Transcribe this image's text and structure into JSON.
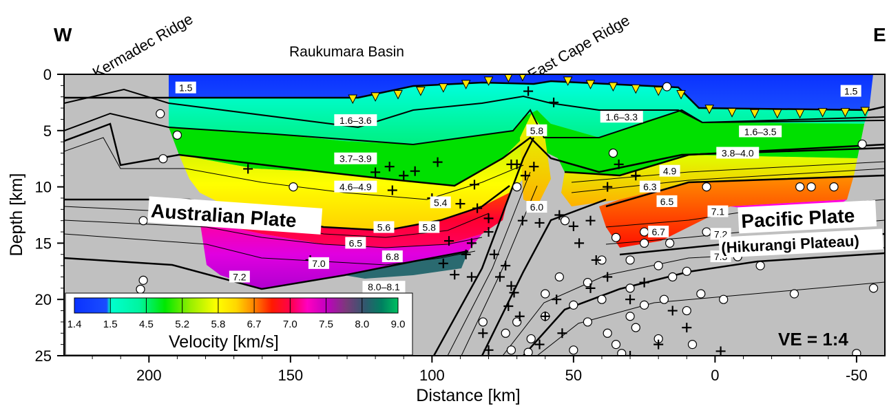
{
  "chart_data": {
    "type": "heatmap",
    "orientation": {
      "west": "W",
      "east": "E"
    },
    "regions": {
      "kermadec": "Kermadec Ridge",
      "raukumara": "Raukumara Basin",
      "east_cape": "East Cape Ridge"
    },
    "plates": {
      "australian": "Australian Plate",
      "pacific": "Pacific Plate",
      "hikurangi": "(Hikurangi Plateau)"
    },
    "xlabel": "Distance [km]",
    "ylabel": "Depth [km]",
    "xlim": [
      230,
      -60
    ],
    "ylim": [
      0,
      25
    ],
    "xticks": [
      200,
      150,
      100,
      50,
      0,
      -50
    ],
    "yticks": [
      0,
      5,
      10,
      15,
      20,
      25
    ],
    "ve_label": "VE = 1:4",
    "colorbar": {
      "label": "Velocity [km/s]",
      "ticks": [
        "1.4",
        "1.5",
        "4.5",
        "5.2",
        "5.8",
        "6.7",
        "7.0",
        "7.5",
        "8.0",
        "9.0"
      ]
    },
    "velocity_labels": [
      {
        "text": "1.5",
        "x": 187,
        "y": 1.2
      },
      {
        "text": "1.5",
        "x": -48,
        "y": 1.5
      },
      {
        "text": "1.6–3.6",
        "x": 127,
        "y": 4.1
      },
      {
        "text": "1.6–3.3",
        "x": 33,
        "y": 3.8
      },
      {
        "text": "1.6–3.5",
        "x": -16,
        "y": 5.1
      },
      {
        "text": "5.8",
        "x": 63,
        "y": 5.0
      },
      {
        "text": "3.7–3.9",
        "x": 127,
        "y": 7.5
      },
      {
        "text": "3.8–4.0",
        "x": -8,
        "y": 7.0
      },
      {
        "text": "4.9",
        "x": 16,
        "y": 8.6
      },
      {
        "text": "4.6–4.9",
        "x": 127,
        "y": 10.0
      },
      {
        "text": "6.3",
        "x": 23,
        "y": 10.0
      },
      {
        "text": "5.4",
        "x": 97,
        "y": 11.4
      },
      {
        "text": "6.0",
        "x": 63,
        "y": 11.8
      },
      {
        "text": "6.5",
        "x": 17,
        "y": 11.3
      },
      {
        "text": "7.1",
        "x": -1,
        "y": 12.2
      },
      {
        "text": "5.6",
        "x": 117,
        "y": 13.6
      },
      {
        "text": "5.8",
        "x": 101,
        "y": 13.6
      },
      {
        "text": "6.7",
        "x": 20,
        "y": 14.0
      },
      {
        "text": "7.2",
        "x": -2,
        "y": 14.2
      },
      {
        "text": "6.5",
        "x": 127,
        "y": 15.0
      },
      {
        "text": "6.8",
        "x": 114,
        "y": 16.2
      },
      {
        "text": "7.0",
        "x": 140,
        "y": 16.8
      },
      {
        "text": "7.3",
        "x": -2,
        "y": 16.2
      },
      {
        "text": "7.2",
        "x": 168,
        "y": 18.0
      },
      {
        "text": "8.0–8.1",
        "x": 117,
        "y": 18.9
      }
    ],
    "obs_stations": [
      {
        "x": 128,
        "y": 2.2
      },
      {
        "x": 120,
        "y": 2.0
      },
      {
        "x": 112,
        "y": 1.8
      },
      {
        "x": 104,
        "y": 1.5
      },
      {
        "x": 96,
        "y": 1.2
      },
      {
        "x": 88,
        "y": 0.9
      },
      {
        "x": 80,
        "y": 0.6
      },
      {
        "x": 73,
        "y": 0.3
      },
      {
        "x": 68,
        "y": 0.2
      },
      {
        "x": 52,
        "y": 0.6
      },
      {
        "x": 44,
        "y": 0.9
      },
      {
        "x": 36,
        "y": 1.1
      },
      {
        "x": 28,
        "y": 1.3
      },
      {
        "x": 20,
        "y": 1.5
      },
      {
        "x": 12,
        "y": 1.8
      },
      {
        "x": 2,
        "y": 3.1
      },
      {
        "x": -6,
        "y": 3.4
      },
      {
        "x": -14,
        "y": 3.5
      },
      {
        "x": -22,
        "y": 3.5
      },
      {
        "x": -30,
        "y": 3.5
      },
      {
        "x": -38,
        "y": 3.4
      },
      {
        "x": -46,
        "y": 3.4
      },
      {
        "x": -53,
        "y": 3.3
      }
    ],
    "earthquakes_circle": [
      {
        "x": 196,
        "y": 3.5
      },
      {
        "x": 190,
        "y": 5.4
      },
      {
        "x": 195,
        "y": 7.5
      },
      {
        "x": 149,
        "y": 10.0
      },
      {
        "x": 70,
        "y": 10.0
      },
      {
        "x": 17,
        "y": 1.1
      },
      {
        "x": 36,
        "y": 7.0
      },
      {
        "x": 3,
        "y": 10.0
      },
      {
        "x": -30,
        "y": 10.0
      },
      {
        "x": -34,
        "y": 10.0
      },
      {
        "x": -42,
        "y": 10.0
      },
      {
        "x": -52,
        "y": 6.2
      },
      {
        "x": 202,
        "y": 13.0
      },
      {
        "x": 140,
        "y": 16.8
      },
      {
        "x": 202,
        "y": 18.3
      },
      {
        "x": 203,
        "y": 19.1
      },
      {
        "x": 53,
        "y": 13.0
      },
      {
        "x": 35,
        "y": 14.5
      },
      {
        "x": 25,
        "y": 14.0
      },
      {
        "x": 25,
        "y": 15.0
      },
      {
        "x": 16,
        "y": 15.0
      },
      {
        "x": 3,
        "y": 14.0
      },
      {
        "x": -8,
        "y": 16.2
      },
      {
        "x": -16,
        "y": 17.0
      },
      {
        "x": -40,
        "y": 12.5
      },
      {
        "x": 40,
        "y": 16.5
      },
      {
        "x": 30,
        "y": 16.5
      },
      {
        "x": 20,
        "y": 17.0
      },
      {
        "x": 15,
        "y": 18.0
      },
      {
        "x": 10,
        "y": 17.5
      },
      {
        "x": 30,
        "y": 19.0
      },
      {
        "x": 45,
        "y": 18.5
      },
      {
        "x": 55,
        "y": 18.0
      },
      {
        "x": 60,
        "y": 19.5
      },
      {
        "x": 50,
        "y": 20.5
      },
      {
        "x": 40,
        "y": 20.0
      },
      {
        "x": 25,
        "y": 20.5
      },
      {
        "x": 18,
        "y": 20.0
      },
      {
        "x": 5,
        "y": 19.5
      },
      {
        "x": 10,
        "y": 21.0
      },
      {
        "x": 30,
        "y": 21.5
      },
      {
        "x": 45,
        "y": 22.0
      },
      {
        "x": 60,
        "y": 21.5
      },
      {
        "x": 70,
        "y": 22.0
      },
      {
        "x": 38,
        "y": 23.0
      },
      {
        "x": 28,
        "y": 22.5
      },
      {
        "x": 20,
        "y": 23.5
      },
      {
        "x": 35,
        "y": 24.0
      },
      {
        "x": 50,
        "y": 24.5
      },
      {
        "x": 65,
        "y": 23.5
      },
      {
        "x": 72,
        "y": 24.5
      },
      {
        "x": -3,
        "y": 20.0
      },
      {
        "x": -28,
        "y": 19.5
      },
      {
        "x": -50,
        "y": 24.8
      },
      {
        "x": -56,
        "y": 19.0
      },
      {
        "x": 82,
        "y": 22.0
      },
      {
        "x": 66,
        "y": 24.7
      },
      {
        "x": 74,
        "y": 23.0
      },
      {
        "x": 33,
        "y": 24.8
      },
      {
        "x": 8,
        "y": 24.0
      }
    ],
    "earthquakes_cross": [
      {
        "x": 126,
        "y": 7.4
      },
      {
        "x": 120,
        "y": 8.7
      },
      {
        "x": 110,
        "y": 9.0
      },
      {
        "x": 106,
        "y": 8.6
      },
      {
        "x": 72,
        "y": 8.0
      },
      {
        "x": 70,
        "y": 8.0
      },
      {
        "x": 64,
        "y": 8.2
      },
      {
        "x": 85,
        "y": 9.8
      },
      {
        "x": 98,
        "y": 7.8
      },
      {
        "x": 114,
        "y": 10.3
      },
      {
        "x": 115,
        "y": 8.2
      },
      {
        "x": 66,
        "y": 1.5
      },
      {
        "x": 57,
        "y": 2.5
      },
      {
        "x": 100,
        "y": 11.0
      },
      {
        "x": 90,
        "y": 11.5
      },
      {
        "x": 84,
        "y": 11.9
      },
      {
        "x": 80,
        "y": 12.8
      },
      {
        "x": 80,
        "y": 14.0
      },
      {
        "x": 86,
        "y": 15.0
      },
      {
        "x": 78,
        "y": 16.0
      },
      {
        "x": 74,
        "y": 17.0
      },
      {
        "x": 76,
        "y": 18.0
      },
      {
        "x": 72,
        "y": 18.8
      },
      {
        "x": 71,
        "y": 19.4
      },
      {
        "x": 73,
        "y": 20.6
      },
      {
        "x": 69,
        "y": 21.5
      },
      {
        "x": 82,
        "y": 23.0
      },
      {
        "x": 80,
        "y": 24.5
      },
      {
        "x": 55,
        "y": 12.5
      },
      {
        "x": 50,
        "y": 13.5
      },
      {
        "x": 48,
        "y": 15.0
      },
      {
        "x": 42,
        "y": 16.5
      },
      {
        "x": 38,
        "y": 18.0
      },
      {
        "x": 44,
        "y": 19.0
      },
      {
        "x": 56,
        "y": 20.0
      },
      {
        "x": 60,
        "y": 21.5
      },
      {
        "x": 54,
        "y": 23.0
      },
      {
        "x": 62,
        "y": 24.0
      },
      {
        "x": 25,
        "y": 18.5
      },
      {
        "x": 30,
        "y": 20.0
      },
      {
        "x": 15,
        "y": 21.0
      },
      {
        "x": 10,
        "y": 22.5
      },
      {
        "x": 20,
        "y": 24.0
      },
      {
        "x": 30,
        "y": 25.0
      },
      {
        "x": 34,
        "y": 8.0
      },
      {
        "x": 28,
        "y": 9.0
      },
      {
        "x": 38,
        "y": 10.0
      },
      {
        "x": 44,
        "y": 13.0
      },
      {
        "x": 96,
        "y": 16.8
      },
      {
        "x": 92,
        "y": 17.8
      },
      {
        "x": 88,
        "y": 16.0
      },
      {
        "x": 94,
        "y": 14.8
      },
      {
        "x": 67,
        "y": 9.0
      },
      {
        "x": 86,
        "y": 18.0
      },
      {
        "x": 68,
        "y": 13.0
      },
      {
        "x": 62,
        "y": 13.2
      },
      {
        "x": -2,
        "y": 24.6
      },
      {
        "x": 165,
        "y": 8.4
      },
      {
        "x": 143,
        "y": 16.5
      }
    ]
  }
}
